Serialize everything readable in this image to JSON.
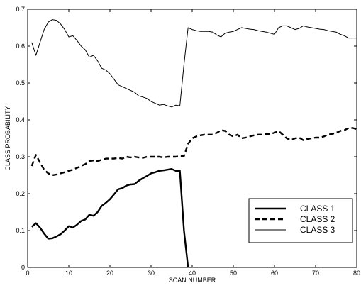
{
  "chart_data": {
    "type": "line",
    "title": "",
    "xlabel": "SCAN NUMBER",
    "ylabel": "CLASS PROBABILITY",
    "xlim": [
      0,
      80
    ],
    "ylim": [
      0,
      0.7
    ],
    "x_ticks": [
      "0",
      "10",
      "20",
      "30",
      "40",
      "50",
      "60",
      "70",
      "80"
    ],
    "y_ticks": [
      "0",
      "0.1",
      "0.2",
      "0.3",
      "0.4",
      "0.5",
      "0.6",
      "0.7"
    ],
    "grid": false,
    "legend_position": "bottom-right",
    "series": [
      {
        "name": "CLASS 1",
        "style": "solid-thick",
        "x": [
          1,
          2,
          3,
          4,
          5,
          6,
          7,
          8,
          9,
          10,
          11,
          12,
          13,
          14,
          15,
          16,
          17,
          18,
          19,
          20,
          21,
          22,
          23,
          24,
          25,
          26,
          27,
          28,
          29,
          30,
          31,
          32,
          33,
          34,
          35,
          36,
          37,
          38,
          39
        ],
        "y": [
          0.11,
          0.12,
          0.108,
          0.092,
          0.078,
          0.079,
          0.084,
          0.09,
          0.1,
          0.112,
          0.108,
          0.116,
          0.126,
          0.13,
          0.143,
          0.14,
          0.15,
          0.167,
          0.175,
          0.185,
          0.198,
          0.212,
          0.215,
          0.222,
          0.225,
          0.226,
          0.235,
          0.242,
          0.248,
          0.255,
          0.258,
          0.262,
          0.263,
          0.265,
          0.267,
          0.262,
          0.262,
          0.1,
          0
        ]
      },
      {
        "name": "CLASS 2",
        "style": "dashed-thick",
        "x": [
          1,
          2,
          3,
          4,
          5,
          6,
          7,
          8,
          9,
          10,
          11,
          12,
          13,
          14,
          15,
          16,
          17,
          18,
          19,
          20,
          21,
          22,
          23,
          24,
          25,
          26,
          27,
          28,
          29,
          30,
          31,
          32,
          33,
          34,
          35,
          36,
          37,
          38,
          39,
          40,
          41,
          42,
          43,
          44,
          45,
          46,
          47,
          48,
          49,
          50,
          51,
          52,
          53,
          54,
          55,
          56,
          57,
          58,
          59,
          60,
          61,
          62,
          63,
          64,
          65,
          66,
          67,
          68,
          69,
          70,
          71,
          72,
          73,
          74,
          75,
          76,
          77,
          78,
          79,
          80
        ],
        "y": [
          0.275,
          0.305,
          0.285,
          0.265,
          0.255,
          0.25,
          0.252,
          0.255,
          0.258,
          0.262,
          0.265,
          0.27,
          0.275,
          0.28,
          0.288,
          0.29,
          0.288,
          0.292,
          0.295,
          0.295,
          0.295,
          0.297,
          0.295,
          0.3,
          0.298,
          0.3,
          0.298,
          0.297,
          0.3,
          0.3,
          0.3,
          0.3,
          0.298,
          0.3,
          0.3,
          0.3,
          0.302,
          0.302,
          0.335,
          0.35,
          0.355,
          0.358,
          0.36,
          0.36,
          0.36,
          0.365,
          0.372,
          0.37,
          0.36,
          0.355,
          0.36,
          0.35,
          0.352,
          0.355,
          0.358,
          0.36,
          0.36,
          0.362,
          0.362,
          0.365,
          0.37,
          0.36,
          0.35,
          0.345,
          0.35,
          0.352,
          0.345,
          0.348,
          0.35,
          0.352,
          0.352,
          0.355,
          0.36,
          0.362,
          0.365,
          0.37,
          0.372,
          0.378,
          0.378,
          0.375
        ]
      },
      {
        "name": "CLASS 3",
        "style": "solid-thin",
        "x": [
          1,
          2,
          3,
          4,
          5,
          6,
          7,
          8,
          9,
          10,
          11,
          12,
          13,
          14,
          15,
          16,
          17,
          18,
          19,
          20,
          21,
          22,
          23,
          24,
          25,
          26,
          27,
          28,
          29,
          30,
          31,
          32,
          33,
          34,
          35,
          36,
          37,
          38,
          39,
          40,
          41,
          42,
          43,
          44,
          45,
          46,
          47,
          48,
          49,
          50,
          51,
          52,
          53,
          54,
          55,
          56,
          57,
          58,
          59,
          60,
          61,
          62,
          63,
          64,
          65,
          66,
          67,
          68,
          69,
          70,
          71,
          72,
          73,
          74,
          75,
          76,
          77,
          78,
          79,
          80
        ],
        "y": [
          0.61,
          0.575,
          0.61,
          0.645,
          0.665,
          0.672,
          0.67,
          0.66,
          0.645,
          0.625,
          0.628,
          0.615,
          0.6,
          0.59,
          0.57,
          0.575,
          0.56,
          0.54,
          0.535,
          0.525,
          0.51,
          0.495,
          0.49,
          0.485,
          0.48,
          0.475,
          0.465,
          0.462,
          0.458,
          0.45,
          0.445,
          0.44,
          0.442,
          0.438,
          0.435,
          0.44,
          0.438,
          0.55,
          0.65,
          0.645,
          0.642,
          0.64,
          0.64,
          0.64,
          0.638,
          0.63,
          0.625,
          0.635,
          0.638,
          0.64,
          0.645,
          0.65,
          0.648,
          0.646,
          0.645,
          0.642,
          0.64,
          0.638,
          0.635,
          0.632,
          0.65,
          0.655,
          0.655,
          0.65,
          0.645,
          0.648,
          0.655,
          0.652,
          0.65,
          0.648,
          0.646,
          0.645,
          0.642,
          0.64,
          0.638,
          0.632,
          0.628,
          0.622,
          0.622,
          0.622
        ]
      }
    ]
  }
}
